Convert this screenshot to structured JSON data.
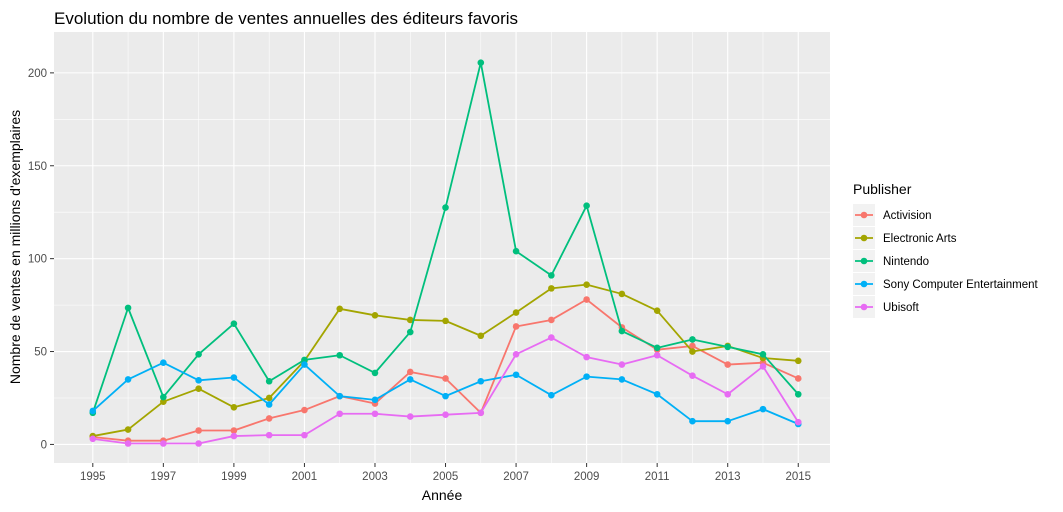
{
  "chart_data": {
    "type": "line",
    "title": "Evolution du nombre de ventes annuelles des éditeurs favoris",
    "xlabel": "Année",
    "ylabel": "Nombre de ventes en millions d'exemplaires",
    "xlim": [
      1993.9,
      2015.9
    ],
    "ylim": [
      -10,
      222
    ],
    "x_ticks": [
      1995,
      1997,
      1999,
      2001,
      2003,
      2005,
      2007,
      2009,
      2011,
      2013,
      2015
    ],
    "x_tick_labels": [
      "1995",
      "1997",
      "1999",
      "2001",
      "2003",
      "2005",
      "2007",
      "2009",
      "2011",
      "2013",
      "2015"
    ],
    "y_ticks": [
      0,
      50,
      100,
      150,
      200
    ],
    "y_tick_labels": [
      "0",
      "50",
      "100",
      "150",
      "200"
    ],
    "grid": true,
    "legend_title": "Publisher",
    "legend_position": "right",
    "x": [
      1995,
      1996,
      1997,
      1998,
      1999,
      2000,
      2001,
      2002,
      2003,
      2004,
      2005,
      2006,
      2007,
      2008,
      2009,
      2010,
      2011,
      2012,
      2013,
      2014,
      2015
    ],
    "series": [
      {
        "name": "Activision",
        "color": "#F8766D",
        "values": [
          4,
          2,
          2,
          7.5,
          7.5,
          14,
          18.5,
          26,
          22,
          39,
          35.5,
          17,
          63.5,
          67,
          78,
          63,
          51,
          53,
          43,
          44,
          35.5
        ]
      },
      {
        "name": "Electronic Arts",
        "color": "#A3A500",
        "values": [
          4.5,
          8,
          23,
          30,
          20,
          25,
          45,
          73,
          69.5,
          67,
          66.5,
          58.5,
          71,
          84,
          86,
          81,
          72,
          50,
          53,
          46.5,
          45
        ]
      },
      {
        "name": "Nintendo",
        "color": "#00BF7D",
        "values": [
          17,
          73.5,
          25.5,
          48.5,
          65,
          34,
          45.5,
          48,
          38.5,
          60.5,
          127.5,
          205.5,
          104,
          91,
          128.5,
          61,
          52,
          56.5,
          52.5,
          48.5,
          27
        ]
      },
      {
        "name": "Sony Computer Entertainment",
        "color": "#00B0F6",
        "values": [
          18,
          35,
          44,
          34.5,
          36,
          21.5,
          43,
          26,
          24,
          35,
          26,
          34,
          37.5,
          26.5,
          36.5,
          35,
          27,
          12.5,
          12.5,
          19,
          11
        ]
      },
      {
        "name": "Ubisoft",
        "color": "#E76BF3",
        "values": [
          3,
          0.5,
          0.5,
          0.5,
          4.5,
          5,
          5,
          16.5,
          16.5,
          15,
          16,
          17,
          48.5,
          57.5,
          47,
          43,
          48,
          37,
          27,
          42,
          12
        ]
      }
    ]
  }
}
